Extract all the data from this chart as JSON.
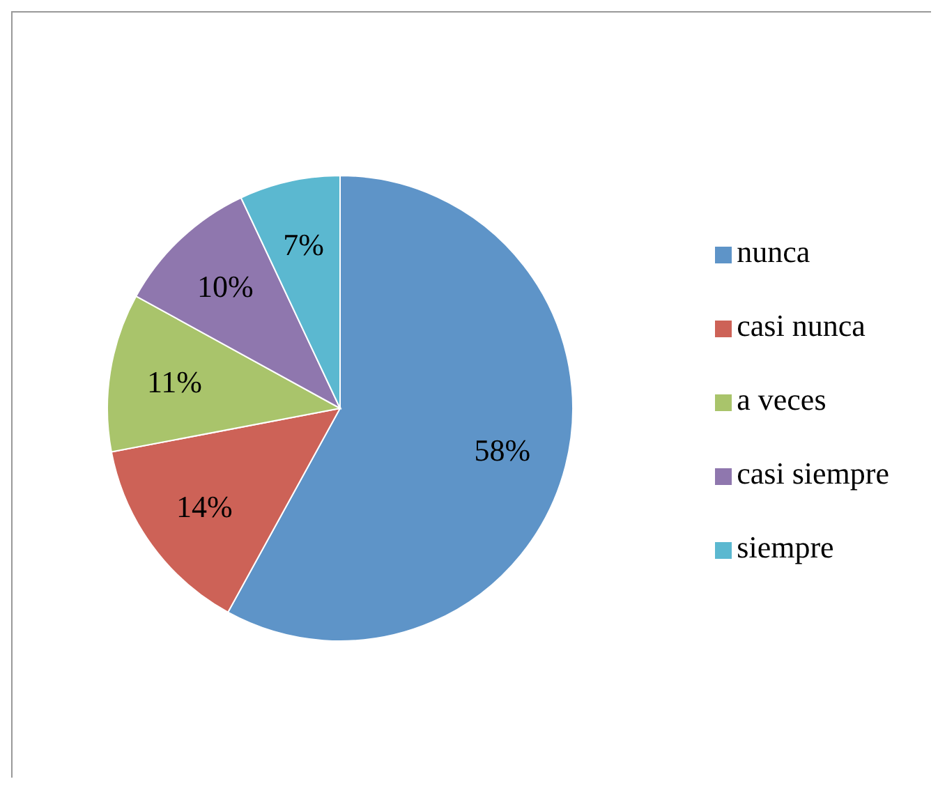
{
  "chart_data": {
    "type": "pie",
    "categories": [
      "nunca",
      "casi nunca",
      "a veces",
      "casi siempre",
      "siempre"
    ],
    "values": [
      58,
      14,
      11,
      10,
      7
    ],
    "colors": [
      "#5e94c8",
      "#cd6257",
      "#a9c46b",
      "#8f77ae",
      "#5bb8d0"
    ],
    "value_labels": [
      "58%",
      "14%",
      "11%",
      "10%",
      "7%"
    ],
    "legend": "right"
  }
}
